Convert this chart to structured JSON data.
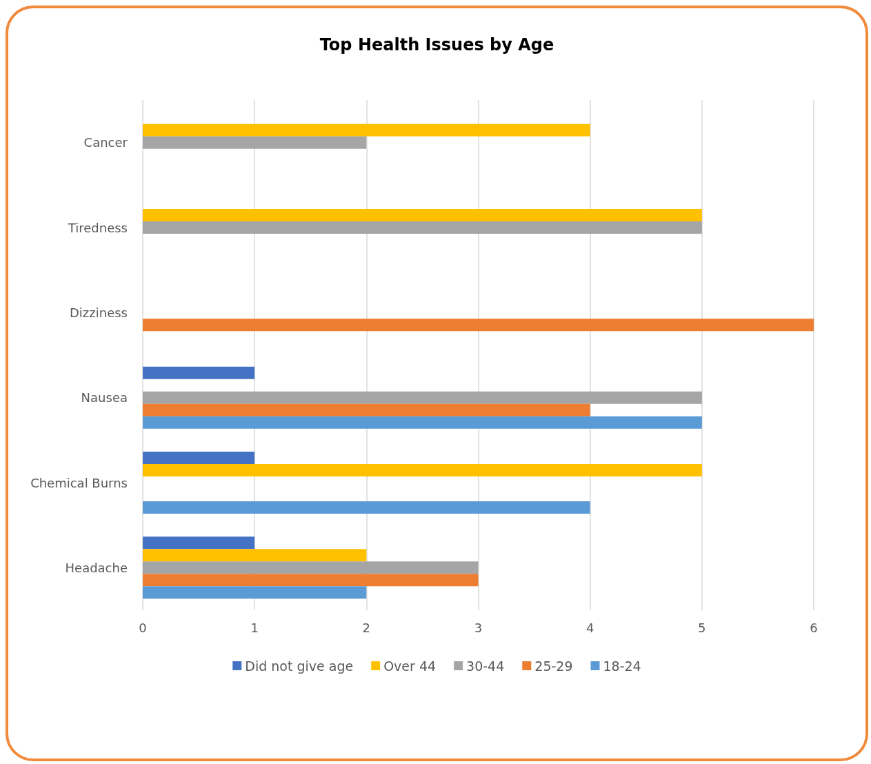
{
  "chart_data": {
    "type": "bar",
    "orientation": "horizontal",
    "title": "Top Health Issues by Age",
    "categories": [
      "Cancer",
      "Tiredness",
      "Dizziness",
      "Nausea",
      "Chemical Burns",
      "Headache"
    ],
    "series": [
      {
        "name": "Did not give age",
        "color": "#4472c4",
        "values": [
          null,
          null,
          null,
          1,
          1,
          1
        ]
      },
      {
        "name": "Over 44",
        "color": "#ffc000",
        "values": [
          4,
          5,
          null,
          null,
          5,
          2
        ]
      },
      {
        "name": "30-44",
        "color": "#a5a5a5",
        "values": [
          2,
          5,
          null,
          5,
          null,
          3
        ]
      },
      {
        "name": "25-29",
        "color": "#ed7d31",
        "values": [
          null,
          null,
          6,
          4,
          null,
          3
        ]
      },
      {
        "name": "18-24",
        "color": "#5b9bd5",
        "values": [
          null,
          null,
          null,
          5,
          4,
          2
        ]
      }
    ],
    "xlim": [
      0,
      6
    ],
    "xticks": [
      0,
      1,
      2,
      3,
      4,
      5,
      6
    ],
    "grid": "x",
    "legend": "bottom"
  }
}
